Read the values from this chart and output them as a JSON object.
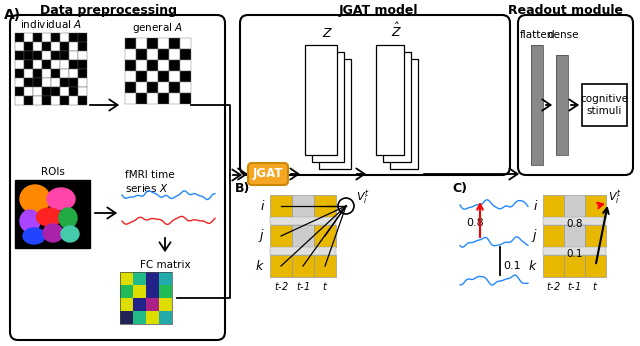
{
  "orange_color": "#F5A623",
  "yellow_color": "#E8B800",
  "gray_light": "#CCCCCC",
  "gray_medium": "#999999",
  "gray_bar": "#888888",
  "blue_wave": "#2288FF",
  "red_wave": "#EE2222",
  "bg_color": "#FFFFFF",
  "fc_colors": [
    [
      "#DDDD00",
      "#22BB88",
      "#222288",
      "#22AAAA"
    ],
    [
      "#22BB55",
      "#DDDD00",
      "#222288",
      "#22BB55"
    ],
    [
      "#DDDD00",
      "#222288",
      "#AA2288",
      "#DDDD00"
    ],
    [
      "#222255",
      "#22BB88",
      "#DDDD00",
      "#22AAAA"
    ]
  ],
  "individual_A": [
    [
      1,
      0,
      1,
      0,
      1,
      0,
      1,
      1
    ],
    [
      0,
      1,
      0,
      1,
      0,
      1,
      0,
      1
    ],
    [
      1,
      1,
      1,
      0,
      1,
      1,
      0,
      0
    ],
    [
      0,
      1,
      0,
      1,
      0,
      0,
      1,
      1
    ],
    [
      1,
      0,
      1,
      0,
      1,
      0,
      0,
      1
    ],
    [
      0,
      1,
      1,
      0,
      0,
      1,
      1,
      0
    ],
    [
      1,
      0,
      0,
      1,
      1,
      0,
      1,
      0
    ],
    [
      0,
      1,
      0,
      1,
      0,
      1,
      0,
      1
    ]
  ],
  "general_A": [
    [
      1,
      0,
      1,
      0,
      1,
      0
    ],
    [
      0,
      1,
      0,
      1,
      0,
      1
    ],
    [
      1,
      0,
      1,
      0,
      1,
      0
    ],
    [
      0,
      1,
      0,
      1,
      0,
      1
    ],
    [
      1,
      0,
      1,
      0,
      1,
      0
    ],
    [
      0,
      1,
      0,
      1,
      0,
      1
    ]
  ]
}
